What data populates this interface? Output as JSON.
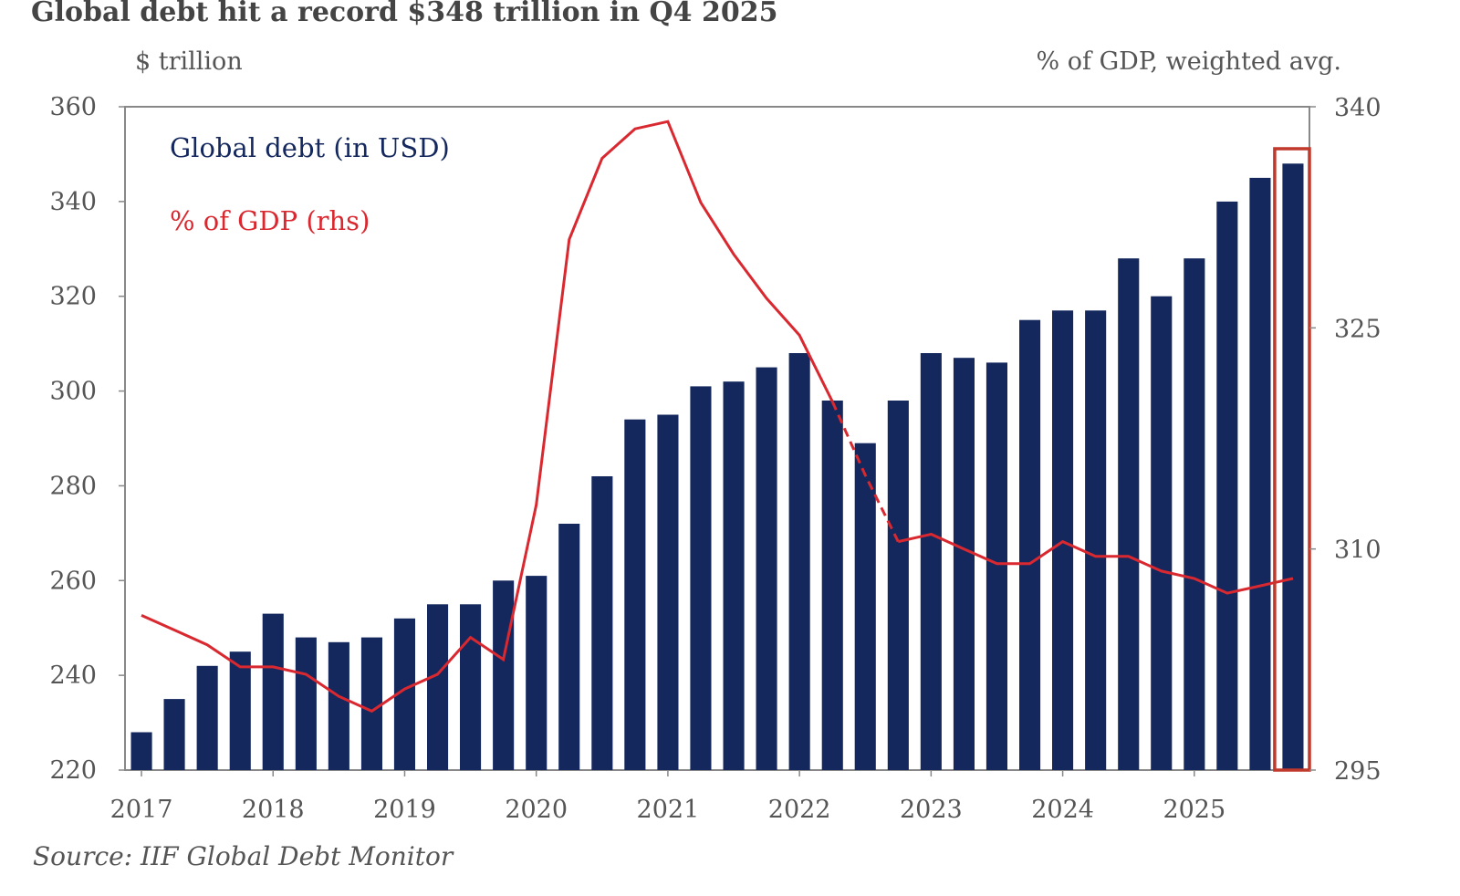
{
  "title": "Global debt hit a record $348 trillion in Q4 2025",
  "source": "Source: IIF Global Debt Monitor",
  "chart_data": {
    "type": "bar",
    "title": "Global debt hit a record $348 trillion in Q4 2025",
    "ylabel": "$ trillion",
    "y2label": "% of GDP, weighted avg.",
    "xlabel": "",
    "ylim": [
      220,
      360
    ],
    "y2lim": [
      295,
      340
    ],
    "yticks": [
      "220",
      "240",
      "260",
      "280",
      "300",
      "320",
      "340",
      "360"
    ],
    "y2ticks": [
      "295",
      "310",
      "325",
      "340"
    ],
    "xticks": [
      "2017",
      "2018",
      "2019",
      "2020",
      "2021",
      "2022",
      "2023",
      "2024",
      "2025"
    ],
    "categories": [
      "2017 Q1",
      "2017 Q2",
      "2017 Q3",
      "2017 Q4",
      "2018 Q1",
      "2018 Q2",
      "2018 Q3",
      "2018 Q4",
      "2019 Q1",
      "2019 Q2",
      "2019 Q3",
      "2019 Q4",
      "2020 Q1",
      "2020 Q2",
      "2020 Q3",
      "2020 Q4",
      "2021 Q1",
      "2021 Q2",
      "2021 Q3",
      "2021 Q4",
      "2022 Q1",
      "2022 Q2",
      "2022 Q3",
      "2022 Q4",
      "2023 Q1",
      "2023 Q2",
      "2023 Q3",
      "2023 Q4",
      "2024 Q1",
      "2024 Q2",
      "2024 Q3",
      "2024 Q4",
      "2025 Q1",
      "2025 Q2",
      "2025 Q3",
      "2025 Q4"
    ],
    "series": [
      {
        "name": "Global debt (in USD)",
        "axis": "left",
        "kind": "bar",
        "color": "#14285e",
        "values": [
          228,
          235,
          242,
          245,
          253,
          248,
          247,
          248,
          252,
          255,
          255,
          260,
          261,
          272,
          282,
          294,
          295,
          301,
          302,
          305,
          308,
          298,
          289,
          298,
          308,
          307,
          306,
          315,
          317,
          317,
          328,
          320,
          328,
          340,
          345,
          348
        ]
      },
      {
        "name": "% of GDP (rhs)",
        "axis": "right",
        "kind": "line",
        "color": "#d9282f",
        "values": [
          305.5,
          304.5,
          303.5,
          302.0,
          302.0,
          301.5,
          300.0,
          299.0,
          300.5,
          301.5,
          304.0,
          302.5,
          313.0,
          331.0,
          336.5,
          338.5,
          339.0,
          333.5,
          330.0,
          327.0,
          324.5,
          320.0,
          315.0,
          310.5,
          311.0,
          310.0,
          309.0,
          309.0,
          310.5,
          309.5,
          309.5,
          308.5,
          308.0,
          307.0,
          307.5,
          308.0
        ]
      }
    ],
    "dashed_segment": {
      "from": "2022 Q2",
      "to": "2022 Q4"
    },
    "highlight": {
      "category": "2025 Q4",
      "color": "#c0392b"
    },
    "grid": false,
    "legend_position": "top-left",
    "colors": {
      "bar": "#14285e",
      "line": "#d9282f",
      "frame": "#888888"
    }
  }
}
